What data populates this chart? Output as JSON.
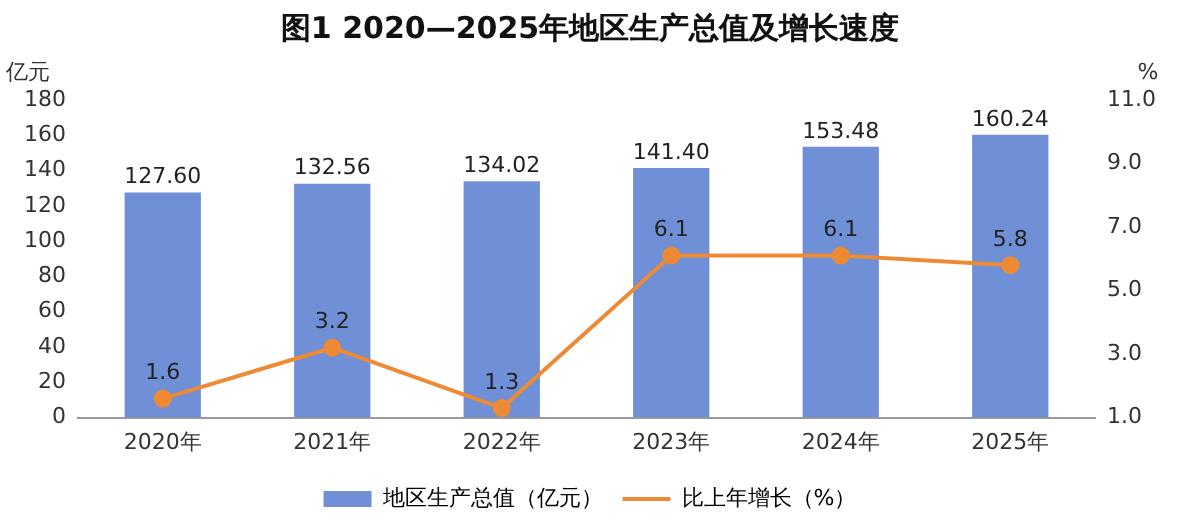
{
  "chart_data": {
    "type": "bar",
    "title": "图1 2020—2025年地区生产总值及增长速度",
    "ylabel": "亿元",
    "y2label": "%",
    "categories": [
      "2020年",
      "2021年",
      "2022年",
      "2023年",
      "2024年",
      "2025年"
    ],
    "series": [
      {
        "name": "地区生产总值（亿元）",
        "color": "#6f8fd6",
        "values": [
          127.6,
          132.56,
          134.02,
          141.4,
          153.48,
          160.24
        ],
        "value_labels": [
          "127.60",
          "132.56",
          "134.02",
          "141.40",
          "153.48",
          "160.24"
        ]
      },
      {
        "name": "比上年增长（%）",
        "type": "line",
        "axis": "y2",
        "color": "#ee8a33",
        "values": [
          1.6,
          3.2,
          1.3,
          6.1,
          6.1,
          5.8
        ],
        "value_labels": [
          "1.6",
          "3.2",
          "1.3",
          "6.1",
          "6.1",
          "5.8"
        ]
      }
    ],
    "ylim": [
      0,
      180
    ],
    "yticks": [
      0,
      20,
      40,
      60,
      80,
      100,
      120,
      140,
      160,
      180
    ],
    "y2lim": [
      1,
      11
    ],
    "y2ticks": [
      {
        "value": 1,
        "label": "1.0"
      },
      {
        "value": 3,
        "label": "3.0"
      },
      {
        "value": 5,
        "label": "5.0"
      },
      {
        "value": 7,
        "label": "7.0"
      },
      {
        "value": 9,
        "label": "9.0"
      },
      {
        "value": 11,
        "label": "11.0"
      }
    ],
    "legend": "bottom",
    "marker": "circle",
    "line_style": "solid"
  }
}
